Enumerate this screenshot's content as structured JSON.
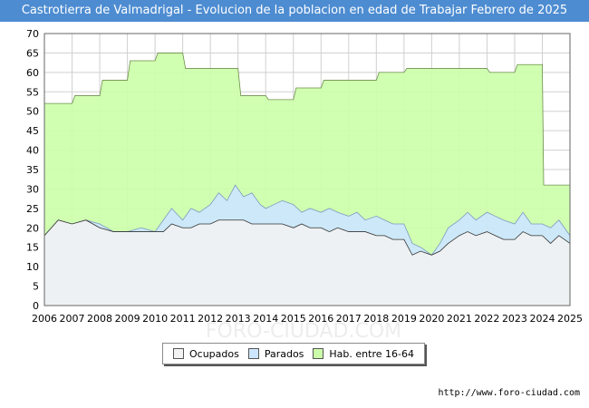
{
  "title": "Castrotierra de Valmadrigal - Evolucion de la poblacion en edad de Trabajar Febrero de 2025",
  "source": "http://www.foro-ciudad.com",
  "watermark": "FORO-CIUDAD.COM",
  "colors": {
    "title_bg": "#4d8cd1",
    "hab": "#ccffaa",
    "parados": "#cce6ff",
    "ocupados": "#f2f2f2",
    "line": "#333333"
  },
  "chart_data": {
    "type": "area",
    "title": "Castrotierra de Valmadrigal - Evolucion de la poblacion en edad de Trabajar Febrero de 2025",
    "xlim": [
      2006,
      2025
    ],
    "ylim": [
      0,
      70
    ],
    "yticks": [
      0,
      5,
      10,
      15,
      20,
      25,
      30,
      35,
      40,
      45,
      50,
      55,
      60,
      65,
      70
    ],
    "xticks": [
      2006,
      2007,
      2008,
      2009,
      2010,
      2011,
      2012,
      2013,
      2014,
      2015,
      2016,
      2017,
      2018,
      2019,
      2020,
      2021,
      2022,
      2023,
      2024,
      2025
    ],
    "grid": true,
    "legend": [
      "Ocupados",
      "Parados",
      "Hab. entre 16-64"
    ],
    "legend_position": "bottom",
    "series": [
      {
        "name": "Hab. entre 16-64",
        "x": [
          2006,
          2007,
          2007.1,
          2008,
          2008.1,
          2009,
          2009.1,
          2010,
          2010.1,
          2011,
          2011.1,
          2012,
          2012.1,
          2013,
          2013.1,
          2014,
          2014.1,
          2015,
          2015.1,
          2016,
          2016.1,
          2017,
          2017.1,
          2018,
          2018.1,
          2019,
          2019.1,
          2020,
          2020.1,
          2021,
          2021.1,
          2022,
          2022.1,
          2023,
          2023.1,
          2024,
          2024.05,
          2025
        ],
        "values": [
          52,
          52,
          54,
          54,
          58,
          58,
          63,
          63,
          65,
          65,
          61,
          61,
          61,
          61,
          54,
          54,
          53,
          53,
          56,
          56,
          58,
          58,
          58,
          58,
          60,
          60,
          61,
          61,
          61,
          61,
          61,
          61,
          60,
          60,
          62,
          62,
          31,
          31
        ]
      },
      {
        "name": "Parados",
        "x": [
          2006,
          2006.5,
          2007,
          2007.5,
          2008,
          2008.5,
          2009,
          2009.5,
          2010,
          2010.3,
          2010.6,
          2011,
          2011.3,
          2011.6,
          2012,
          2012.3,
          2012.6,
          2012.9,
          2013.2,
          2013.5,
          2013.8,
          2014,
          2014.3,
          2014.6,
          2015,
          2015.3,
          2015.6,
          2016,
          2016.3,
          2016.6,
          2017,
          2017.3,
          2017.6,
          2018,
          2018.3,
          2018.6,
          2019,
          2019.3,
          2019.6,
          2020,
          2020.3,
          2020.6,
          2021,
          2021.3,
          2021.6,
          2022,
          2022.3,
          2022.6,
          2023,
          2023.3,
          2023.6,
          2024,
          2024.3,
          2024.6,
          2025
        ],
        "values": [
          18,
          22,
          21,
          22,
          21,
          19,
          19,
          20,
          19,
          22,
          25,
          22,
          25,
          24,
          26,
          29,
          27,
          31,
          28,
          29,
          26,
          25,
          26,
          27,
          26,
          24,
          25,
          24,
          25,
          24,
          23,
          24,
          22,
          23,
          22,
          21,
          21,
          16,
          15,
          13,
          16,
          20,
          22,
          24,
          22,
          24,
          23,
          22,
          21,
          24,
          21,
          21,
          20,
          22,
          18
        ]
      },
      {
        "name": "Ocupados",
        "x": [
          2006,
          2006.5,
          2007,
          2007.5,
          2008,
          2008.5,
          2009,
          2009.5,
          2010,
          2010.3,
          2010.6,
          2011,
          2011.3,
          2011.6,
          2012,
          2012.3,
          2012.6,
          2012.9,
          2013.2,
          2013.5,
          2013.8,
          2014,
          2014.3,
          2014.6,
          2015,
          2015.3,
          2015.6,
          2016,
          2016.3,
          2016.6,
          2017,
          2017.3,
          2017.6,
          2018,
          2018.3,
          2018.6,
          2019,
          2019.3,
          2019.6,
          2020,
          2020.3,
          2020.6,
          2021,
          2021.3,
          2021.6,
          2022,
          2022.3,
          2022.6,
          2023,
          2023.3,
          2023.6,
          2024,
          2024.3,
          2024.6,
          2025
        ],
        "values": [
          18,
          22,
          21,
          22,
          20,
          19,
          19,
          19,
          19,
          19,
          21,
          20,
          20,
          21,
          21,
          22,
          22,
          22,
          22,
          21,
          21,
          21,
          21,
          21,
          20,
          21,
          20,
          20,
          19,
          20,
          19,
          19,
          19,
          18,
          18,
          17,
          17,
          13,
          14,
          13,
          14,
          16,
          18,
          19,
          18,
          19,
          18,
          17,
          17,
          19,
          18,
          18,
          16,
          18,
          16
        ]
      }
    ]
  }
}
